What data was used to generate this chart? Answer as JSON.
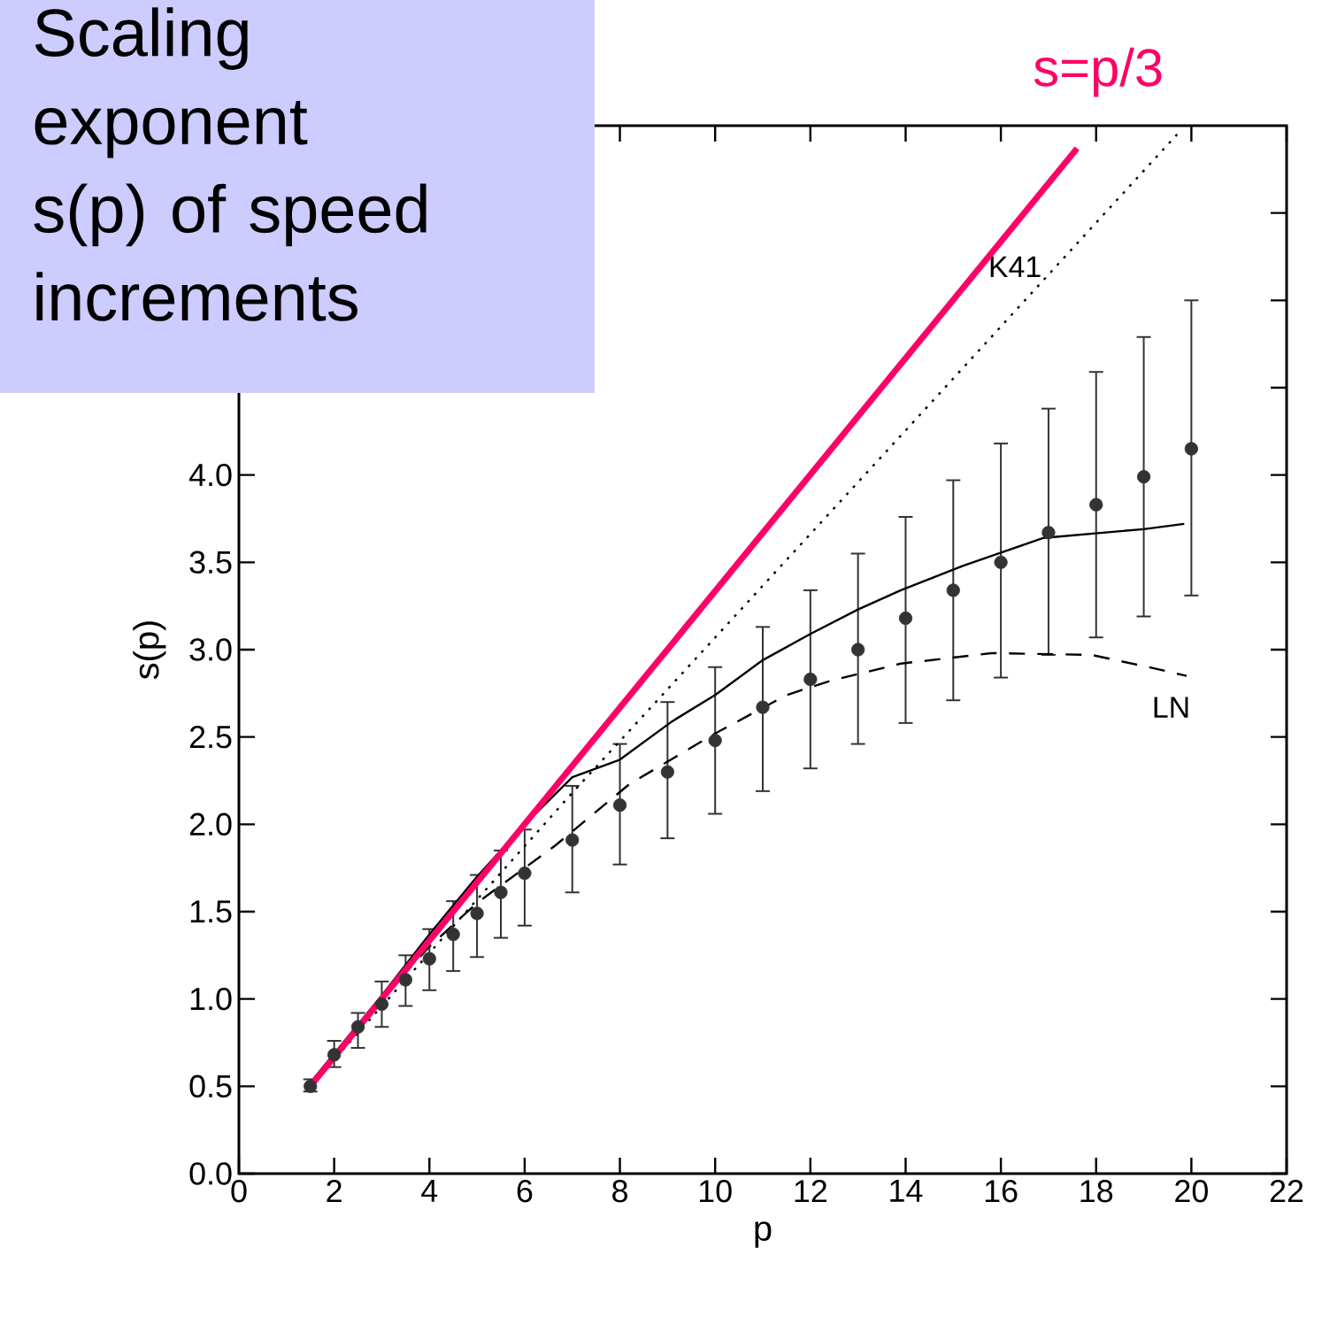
{
  "chart_data": {
    "type": "line",
    "title": "Scaling exponent s(p) of speed increments",
    "xlabel": "p",
    "ylabel": "s(p)",
    "xlim": [
      0,
      22
    ],
    "xticks": [
      0,
      2,
      4,
      6,
      8,
      10,
      12,
      14,
      16,
      18,
      20,
      22
    ],
    "ylim": [
      0,
      6
    ],
    "yticks": [
      {
        "value": 0,
        "label": "0.0"
      },
      0.5,
      {
        "value": 1,
        "label": "1.0"
      },
      1.5,
      {
        "value": 2,
        "label": "2.0"
      },
      2.5,
      {
        "value": 3,
        "label": "3.0"
      },
      3.5,
      {
        "value": 4,
        "label": "4.0"
      },
      {
        "value": 4.5,
        "label": null
      },
      {
        "value": 5.0,
        "label": null
      },
      {
        "value": 5.5,
        "label": null
      }
    ],
    "grid": false,
    "series": [
      {
        "type": "scatter",
        "color": "#333333",
        "marker": "circle",
        "x": [
          1.5,
          2,
          2.5,
          3,
          3.5,
          4,
          4.5,
          5,
          5.5,
          6,
          7,
          8,
          9,
          10,
          11,
          12,
          13,
          14,
          15,
          16,
          17,
          18,
          19,
          20
        ],
        "values": [
          0.5,
          0.68,
          0.84,
          0.97,
          1.11,
          1.23,
          1.37,
          1.49,
          1.61,
          1.72,
          1.91,
          2.11,
          2.3,
          2.48,
          2.67,
          2.83,
          3.0,
          3.18,
          3.34,
          3.5,
          3.67,
          3.83,
          3.99,
          4.15
        ],
        "errors": [
          [
            0.47,
            0.54
          ],
          [
            0.61,
            0.76
          ],
          [
            0.72,
            0.92
          ],
          [
            0.84,
            1.1
          ],
          [
            0.96,
            1.25
          ],
          [
            1.05,
            1.4
          ],
          [
            1.16,
            1.56
          ],
          [
            1.24,
            1.71
          ],
          [
            1.35,
            1.85
          ],
          [
            1.42,
            1.97
          ],
          [
            1.61,
            2.22
          ],
          [
            1.77,
            2.46
          ],
          [
            1.92,
            2.7
          ],
          [
            2.06,
            2.9
          ],
          [
            2.19,
            3.13
          ],
          [
            2.32,
            3.34
          ],
          [
            2.46,
            3.55
          ],
          [
            2.58,
            3.76
          ],
          [
            2.71,
            3.97
          ],
          [
            2.84,
            4.18
          ],
          [
            2.97,
            4.38
          ],
          [
            3.07,
            4.59
          ],
          [
            3.19,
            4.79
          ],
          [
            3.31,
            5.0
          ]
        ]
      },
      {
        "color": "#000000",
        "line_style": "solid",
        "marker": "none",
        "x": [
          1.5,
          3,
          4,
          5,
          6,
          7,
          8,
          9.1,
          10,
          11,
          12,
          13,
          13.9,
          15.2,
          16.9,
          19,
          19.85
        ],
        "values": [
          0.52,
          1.02,
          1.37,
          1.7,
          2.0,
          2.27,
          2.37,
          2.59,
          2.74,
          2.94,
          3.09,
          3.23,
          3.34,
          3.48,
          3.64,
          3.69,
          3.72
        ]
      },
      {
        "name": "LN",
        "color": "#000000",
        "line_style": "dashed",
        "marker": "none",
        "x": [
          1.5,
          3,
          4,
          5,
          6.65,
          8.2,
          10,
          11.5,
          12.4,
          13.9,
          15.8,
          17.9,
          19.1,
          19.9
        ],
        "values": [
          0.5,
          1.0,
          1.3,
          1.55,
          1.88,
          2.23,
          2.52,
          2.74,
          2.82,
          2.92,
          2.98,
          2.97,
          2.9,
          2.85
        ]
      },
      {
        "name": "K41",
        "color": "#000000",
        "line_style": "dotted",
        "marker": "none",
        "x": [
          1.5,
          7,
          14.05,
          19.7
        ],
        "values": [
          0.5,
          2.18,
          4.27,
          5.95
        ]
      },
      {
        "name": "s=p/3",
        "color": "#ff0066",
        "line_style": "solid",
        "marker": "none",
        "x": [
          1.5,
          17.6
        ],
        "values": [
          0.5,
          5.87
        ]
      }
    ]
  }
}
